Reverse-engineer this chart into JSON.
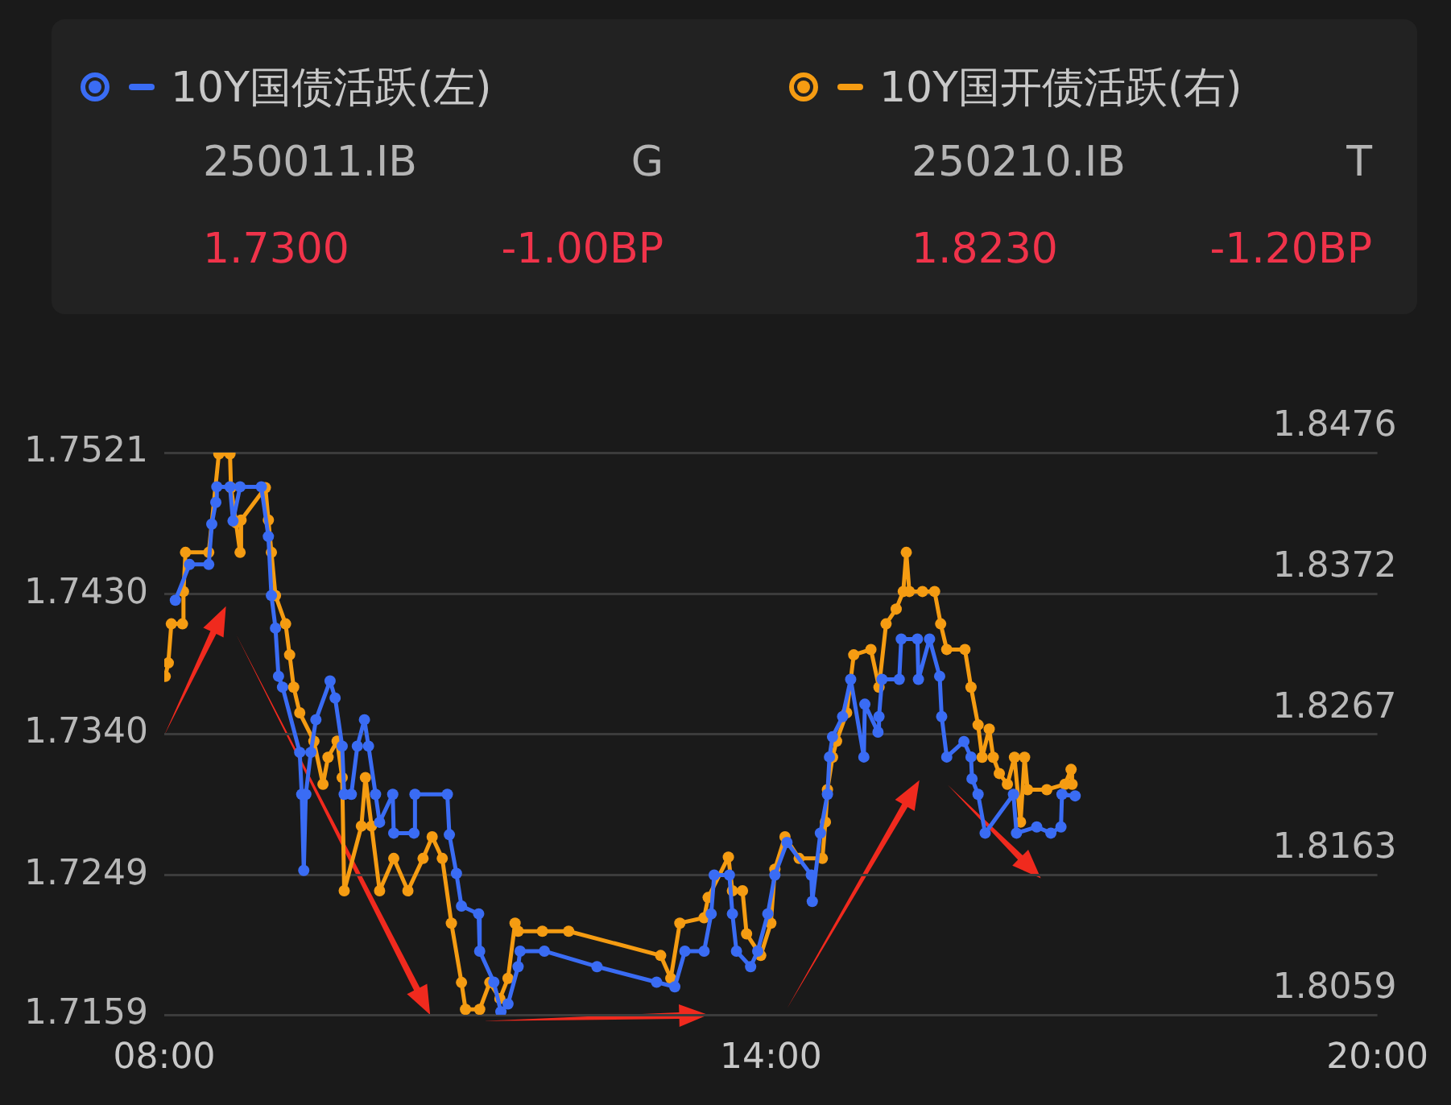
{
  "chart_data": {
    "type": "line",
    "annotations": [
      "250011.IB",
      "G",
      "1.7300",
      "-1.00BP",
      "250210.IB",
      "T",
      "1.8230",
      "-1.20BP"
    ],
    "series": [
      {
        "name": "10Y国债活跃(左)",
        "color": "#3a6cf4",
        "axis": "y",
        "x": [
          8.11,
          8.25,
          8.44,
          8.47,
          8.51,
          8.52,
          8.65,
          8.68,
          8.75,
          8.96,
          9.03,
          9.06,
          9.1,
          9.13,
          9.17,
          9.34,
          9.36,
          9.38,
          9.4,
          9.45,
          9.5,
          9.64,
          9.69,
          9.76,
          9.78,
          9.85,
          9.91,
          9.98,
          10.02,
          10.09,
          10.13,
          10.26,
          10.27,
          10.47,
          10.48,
          10.8,
          10.82,
          10.89,
          10.94,
          11.11,
          11.12,
          11.26,
          11.33,
          11.4,
          11.5,
          11.52,
          11.76,
          12.28,
          12.87,
          13.05,
          13.15,
          13.34,
          13.41,
          13.44,
          13.59,
          13.62,
          13.66,
          13.8,
          13.87,
          13.97,
          14.04,
          14.16,
          14.4,
          14.41,
          14.49,
          14.56,
          14.58,
          14.61,
          14.71,
          14.79,
          14.92,
          14.93,
          15.06,
          15.07,
          15.1,
          15.27,
          15.29,
          15.45,
          15.46,
          15.57,
          15.67,
          15.69,
          15.74,
          15.91,
          15.98,
          15.99,
          16.05,
          16.12,
          16.4,
          16.43,
          16.63,
          16.77,
          16.87,
          16.88,
          17.01
        ],
        "values": [
          1.7426,
          1.7449,
          1.7449,
          1.7475,
          1.7489,
          1.7499,
          1.7499,
          1.7477,
          1.7499,
          1.7499,
          1.7467,
          1.7429,
          1.7408,
          1.7377,
          1.737,
          1.7328,
          1.7301,
          1.7252,
          1.7301,
          1.7328,
          1.7349,
          1.7374,
          1.7363,
          1.7332,
          1.7301,
          1.7301,
          1.7332,
          1.7349,
          1.7332,
          1.7301,
          1.7283,
          1.7301,
          1.7276,
          1.7276,
          1.7301,
          1.7301,
          1.7275,
          1.725,
          1.7229,
          1.7224,
          1.72,
          1.718,
          1.7161,
          1.7166,
          1.719,
          1.72,
          1.72,
          1.719,
          1.718,
          1.7177,
          1.72,
          1.72,
          1.7224,
          1.7249,
          1.7249,
          1.7224,
          1.72,
          1.719,
          1.72,
          1.7224,
          1.7249,
          1.727,
          1.7249,
          1.7232,
          1.7276,
          1.7301,
          1.7325,
          1.7338,
          1.7351,
          1.7375,
          1.7325,
          1.7359,
          1.7341,
          1.7351,
          1.7375,
          1.7375,
          1.7401,
          1.7401,
          1.7375,
          1.7401,
          1.7377,
          1.7351,
          1.7325,
          1.7335,
          1.7325,
          1.7311,
          1.7301,
          1.7276,
          1.7301,
          1.7276,
          1.728,
          1.7276,
          1.728,
          1.7301,
          1.73
        ]
      },
      {
        "name": "10Y国开债活跃(右)",
        "color": "#f59c12",
        "axis": "y2",
        "x": [
          8.01,
          8.04,
          8.07,
          8.18,
          8.19,
          8.21,
          8.44,
          8.54,
          8.65,
          8.66,
          8.71,
          8.75,
          8.76,
          9.0,
          9.03,
          9.06,
          9.1,
          9.2,
          9.24,
          9.28,
          9.34,
          9.48,
          9.57,
          9.62,
          9.71,
          9.76,
          9.78,
          9.95,
          9.99,
          10.05,
          10.13,
          10.27,
          10.41,
          10.56,
          10.65,
          10.75,
          10.84,
          10.94,
          10.98,
          11.12,
          11.22,
          11.32,
          11.4,
          11.47,
          11.5,
          11.74,
          12.0,
          12.91,
          13.01,
          13.1,
          13.34,
          13.38,
          13.58,
          13.62,
          13.72,
          13.76,
          13.9,
          14.0,
          14.04,
          14.14,
          14.28,
          14.51,
          14.54,
          14.56,
          14.61,
          14.65,
          14.75,
          14.82,
          14.99,
          15.07,
          15.14,
          15.24,
          15.31,
          15.34,
          15.37,
          15.5,
          15.62,
          15.68,
          15.74,
          15.92,
          15.98,
          16.05,
          16.09,
          16.16,
          16.2,
          16.26,
          16.34,
          16.41,
          16.47,
          16.51,
          16.54,
          16.73,
          16.91,
          16.97,
          16.98
        ],
        "values": [
          1.831,
          1.832,
          1.8349,
          1.8349,
          1.8373,
          1.8402,
          1.8402,
          1.8475,
          1.8475,
          1.845,
          1.8424,
          1.8402,
          1.8426,
          1.845,
          1.8426,
          1.8402,
          1.837,
          1.8349,
          1.8326,
          1.8302,
          1.8283,
          1.8262,
          1.823,
          1.825,
          1.8262,
          1.8235,
          1.8151,
          1.8199,
          1.8235,
          1.8199,
          1.8151,
          1.8175,
          1.8151,
          1.8175,
          1.8191,
          1.8175,
          1.8127,
          1.8083,
          1.8063,
          1.8063,
          1.8083,
          1.8071,
          1.8086,
          1.8127,
          1.8121,
          1.8121,
          1.8121,
          1.8103,
          1.8086,
          1.8127,
          1.8131,
          1.8146,
          1.8176,
          1.8151,
          1.8151,
          1.8119,
          1.8103,
          1.8127,
          1.8167,
          1.8191,
          1.8175,
          1.8175,
          1.8202,
          1.8226,
          1.825,
          1.8262,
          1.8283,
          1.8326,
          1.833,
          1.8302,
          1.8349,
          1.836,
          1.8373,
          1.8402,
          1.8373,
          1.8373,
          1.8373,
          1.8349,
          1.833,
          1.833,
          1.8302,
          1.8274,
          1.825,
          1.8271,
          1.825,
          1.8238,
          1.823,
          1.825,
          1.8202,
          1.825,
          1.8226,
          1.8226,
          1.823,
          1.8241,
          1.823
        ]
      }
    ],
    "xlim": [
      8,
      20
    ],
    "xticks": [
      {
        "value": 8,
        "label": "08:00"
      },
      {
        "value": 14,
        "label": "14:00"
      },
      {
        "value": 20,
        "label": "20:00"
      }
    ],
    "ylim": [
      1.7159,
      1.7521
    ],
    "yticks": [
      1.7159,
      1.7249,
      {
        "value": 1.734,
        "label": "1.7340"
      },
      {
        "value": 1.743,
        "label": "1.7430"
      },
      1.7521
    ],
    "y2lim": [
      1.8059,
      1.8476
    ],
    "y2ticks": [
      1.8059,
      1.8163,
      1.8267,
      1.8372,
      1.8476
    ],
    "grid": "y",
    "legend": "top",
    "marker": "circle",
    "line_style": "solid"
  }
}
